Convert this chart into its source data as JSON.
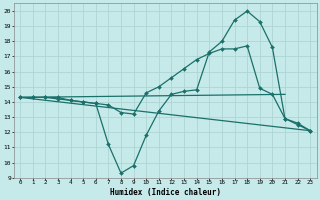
{
  "xlabel": "Humidex (Indice chaleur)",
  "bg_color": "#c6eaea",
  "grid_color": "#aed4d4",
  "line_color": "#1a706a",
  "xlim": [
    -0.5,
    23.5
  ],
  "ylim": [
    9,
    20.5
  ],
  "xticks": [
    0,
    1,
    2,
    3,
    4,
    5,
    6,
    7,
    8,
    9,
    10,
    11,
    12,
    13,
    14,
    15,
    16,
    17,
    18,
    19,
    20,
    21,
    22,
    23
  ],
  "yticks": [
    9,
    10,
    11,
    12,
    13,
    14,
    15,
    16,
    17,
    18,
    19,
    20
  ],
  "lines": [
    {
      "x": [
        0,
        1,
        2,
        3,
        4,
        5,
        6,
        7,
        8,
        9,
        10,
        11,
        12,
        13,
        14,
        15,
        16,
        17,
        18,
        19,
        20,
        21,
        22,
        23
      ],
      "y": [
        14.3,
        14.3,
        14.3,
        14.2,
        14.1,
        14.0,
        13.9,
        13.8,
        13.3,
        13.2,
        14.6,
        15.0,
        15.6,
        16.2,
        16.8,
        17.2,
        17.5,
        17.5,
        17.7,
        14.9,
        14.5,
        12.9,
        12.5,
        12.1
      ],
      "marker": true
    },
    {
      "x": [
        0,
        1,
        2,
        3,
        4,
        5,
        6,
        7,
        8,
        9,
        10,
        11,
        12,
        13,
        14,
        15,
        16,
        17,
        18,
        19,
        20,
        21,
        22,
        23
      ],
      "y": [
        14.3,
        14.3,
        14.3,
        14.3,
        14.1,
        14.0,
        13.9,
        11.2,
        9.3,
        9.8,
        11.8,
        13.4,
        14.5,
        14.7,
        14.8,
        17.3,
        18.0,
        19.4,
        20.0,
        19.3,
        17.6,
        12.9,
        12.6,
        12.1
      ],
      "marker": true
    },
    {
      "x": [
        0,
        21
      ],
      "y": [
        14.3,
        14.5
      ],
      "marker": false
    },
    {
      "x": [
        0,
        23
      ],
      "y": [
        14.3,
        12.1
      ],
      "marker": false
    }
  ]
}
